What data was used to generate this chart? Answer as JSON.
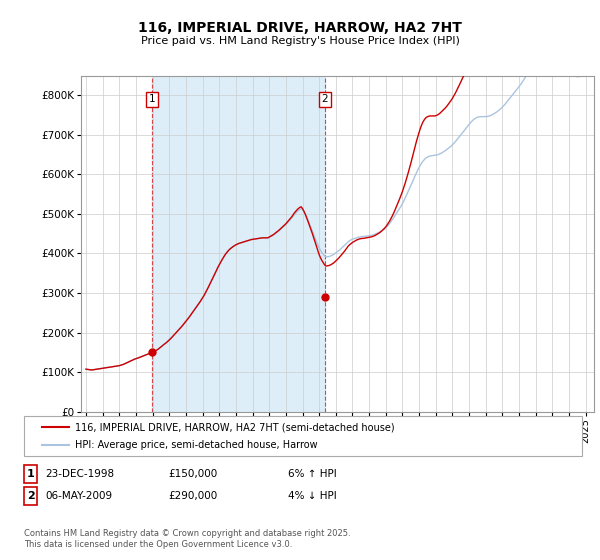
{
  "title": "116, IMPERIAL DRIVE, HARROW, HA2 7HT",
  "subtitle": "Price paid vs. HM Land Registry's House Price Index (HPI)",
  "legend_line1": "116, IMPERIAL DRIVE, HARROW, HA2 7HT (semi-detached house)",
  "legend_line2": "HPI: Average price, semi-detached house, Harrow",
  "footer": "Contains HM Land Registry data © Crown copyright and database right 2025.\nThis data is licensed under the Open Government Licence v3.0.",
  "annotation1_date": "23-DEC-1998",
  "annotation1_price": "£150,000",
  "annotation1_hpi": "6% ↑ HPI",
  "annotation2_date": "06-MAY-2009",
  "annotation2_price": "£290,000",
  "annotation2_hpi": "4% ↓ HPI",
  "ylim": [
    0,
    850000
  ],
  "yticks": [
    0,
    100000,
    200000,
    300000,
    400000,
    500000,
    600000,
    700000,
    800000
  ],
  "ytick_labels": [
    "£0",
    "£100K",
    "£200K",
    "£300K",
    "£400K",
    "£500K",
    "£600K",
    "£700K",
    "£800K"
  ],
  "line_color_red": "#cc0000",
  "line_color_blue": "#aac4e0",
  "fill_color_blue": "#ddeeff",
  "grid_color": "#cccccc",
  "background_color": "#ffffff",
  "sale1_year": 1998.97,
  "sale1_price": 150000,
  "sale2_year": 2009.35,
  "sale2_price": 290000,
  "xlim": [
    1994.7,
    2025.5
  ],
  "xtick_years": [
    1995,
    1996,
    1997,
    1998,
    1999,
    2000,
    2001,
    2002,
    2003,
    2004,
    2005,
    2006,
    2007,
    2008,
    2009,
    2010,
    2011,
    2012,
    2013,
    2014,
    2015,
    2016,
    2017,
    2018,
    2019,
    2020,
    2021,
    2022,
    2023,
    2024,
    2025
  ],
  "hpi_raw": [
    78.2,
    77.8,
    77.4,
    77.0,
    76.6,
    77.0,
    77.4,
    77.8,
    78.2,
    78.6,
    79.0,
    79.4,
    79.8,
    80.2,
    80.6,
    81.0,
    81.4,
    81.8,
    82.2,
    82.6,
    83.0,
    83.4,
    83.8,
    84.2,
    84.6,
    85.4,
    86.2,
    87.0,
    88.2,
    89.4,
    90.6,
    91.8,
    93.0,
    94.2,
    95.4,
    96.6,
    97.4,
    98.2,
    99.2,
    100.2,
    101.2,
    102.2,
    103.2,
    104.2,
    105.2,
    106.2,
    107.2,
    108.2,
    109.2,
    110.4,
    111.8,
    113.4,
    115.0,
    117.0,
    119.2,
    121.2,
    123.4,
    125.2,
    127.2,
    129.6,
    132.0,
    134.4,
    137.2,
    140.0,
    142.8,
    145.6,
    148.4,
    151.2,
    154.0,
    156.8,
    160.0,
    163.2,
    166.4,
    169.6,
    172.8,
    176.4,
    180.0,
    183.6,
    187.2,
    190.8,
    194.4,
    198.0,
    201.6,
    205.6,
    209.6,
    213.6,
    218.4,
    223.2,
    228.4,
    233.6,
    238.8,
    244.0,
    249.2,
    254.4,
    260.0,
    265.6,
    270.4,
    275.2,
    279.6,
    284.0,
    288.0,
    291.6,
    294.8,
    297.6,
    300.0,
    302.0,
    304.0,
    305.6,
    307.2,
    308.4,
    309.6,
    310.4,
    311.2,
    312.0,
    312.8,
    313.6,
    314.4,
    315.2,
    316.0,
    316.8,
    317.2,
    317.6,
    318.0,
    318.4,
    318.8,
    319.2,
    319.6,
    320.0,
    320.0,
    320.0,
    320.0,
    320.0,
    320.8,
    322.0,
    323.2,
    324.8,
    326.8,
    328.8,
    330.8,
    332.8,
    335.2,
    337.6,
    340.0,
    342.4,
    344.8,
    347.6,
    350.4,
    353.2,
    356.0,
    359.2,
    362.4,
    365.2,
    368.0,
    370.4,
    372.4,
    373.6,
    372.0,
    368.0,
    363.2,
    357.6,
    352.0,
    345.6,
    339.2,
    332.8,
    326.4,
    320.0,
    313.6,
    307.2,
    301.6,
    296.8,
    292.8,
    289.6,
    286.4,
    284.8,
    285.2,
    285.6,
    286.4,
    287.6,
    288.8,
    290.4,
    292.4,
    294.4,
    296.4,
    298.4,
    300.8,
    303.2,
    305.6,
    308.0,
    310.4,
    312.8,
    314.8,
    316.4,
    317.6,
    318.4,
    319.2,
    320.0,
    320.8,
    321.6,
    322.0,
    322.4,
    322.4,
    322.8,
    323.2,
    323.6,
    324.0,
    324.4,
    324.8,
    325.6,
    326.4,
    327.6,
    328.8,
    330.0,
    331.2,
    332.8,
    334.4,
    336.0,
    338.4,
    340.8,
    344.0,
    347.2,
    350.8,
    354.4,
    358.4,
    362.4,
    366.4,
    370.4,
    374.4,
    378.4,
    383.2,
    388.0,
    393.6,
    399.2,
    404.8,
    410.4,
    416.0,
    422.0,
    428.0,
    433.6,
    439.2,
    444.8,
    449.6,
    454.4,
    458.4,
    462.0,
    464.8,
    467.2,
    468.8,
    470.0,
    470.8,
    471.2,
    471.6,
    472.0,
    472.4,
    472.8,
    473.6,
    474.8,
    476.0,
    477.6,
    479.2,
    480.8,
    482.8,
    484.8,
    486.8,
    488.8,
    491.2,
    494.0,
    496.8,
    500.0,
    503.2,
    506.4,
    509.6,
    512.8,
    516.0,
    519.2,
    522.4,
    525.6,
    528.8,
    532.0,
    534.8,
    537.2,
    539.2,
    540.8,
    542.0,
    542.8,
    543.2,
    543.2,
    543.2,
    543.2,
    543.2,
    543.6,
    544.0,
    544.8,
    546.0,
    547.2,
    548.8,
    550.4,
    552.0,
    554.0,
    556.0,
    558.4,
    560.8,
    563.6,
    566.4,
    569.6,
    572.8,
    576.0,
    579.2,
    582.4,
    585.6,
    588.8,
    592.0,
    595.2,
    598.4,
    602.0,
    605.6,
    609.6,
    613.6,
    617.6,
    621.6,
    625.6,
    629.6,
    633.2,
    636.4,
    639.2,
    641.6,
    643.2,
    644.8,
    646.0,
    646.8,
    647.2,
    647.2,
    647.2,
    646.8,
    646.4,
    645.6,
    644.8,
    643.6,
    642.4,
    640.8,
    639.2,
    637.6,
    636.0,
    634.0,
    632.0,
    630.0,
    628.0,
    626.0,
    624.0,
    622.4,
    620.8,
    619.6,
    618.4,
    617.6,
    617.2,
    616.8,
    616.8,
    617.2,
    617.6,
    618.4,
    619.6,
    620.8
  ],
  "red_raw": [
    78.2,
    77.8,
    77.4,
    77.0,
    76.6,
    77.0,
    77.4,
    77.8,
    78.2,
    78.6,
    79.0,
    79.4,
    79.8,
    80.2,
    80.6,
    81.0,
    81.4,
    81.8,
    82.2,
    82.6,
    83.0,
    83.4,
    83.8,
    84.2,
    84.6,
    85.4,
    86.2,
    87.0,
    88.2,
    89.4,
    90.6,
    91.8,
    93.0,
    94.2,
    95.4,
    96.6,
    97.4,
    98.2,
    99.2,
    100.2,
    101.2,
    102.2,
    103.2,
    104.2,
    105.2,
    106.2,
    107.2,
    108.2,
    109.2,
    110.4,
    111.8,
    113.4,
    115.0,
    117.0,
    119.2,
    121.2,
    123.4,
    125.2,
    127.2,
    129.6,
    132.0,
    134.4,
    137.2,
    140.0,
    142.8,
    145.6,
    148.4,
    151.2,
    154.0,
    156.8,
    160.0,
    163.2,
    166.4,
    169.6,
    172.8,
    176.4,
    180.0,
    183.6,
    187.2,
    190.8,
    194.4,
    198.0,
    201.6,
    205.6,
    209.6,
    213.6,
    218.4,
    223.2,
    228.4,
    233.6,
    238.8,
    244.0,
    249.2,
    254.4,
    260.0,
    265.6,
    270.4,
    275.2,
    279.6,
    284.0,
    288.0,
    291.6,
    294.8,
    297.6,
    300.0,
    302.0,
    304.0,
    305.6,
    307.2,
    308.4,
    309.6,
    310.4,
    311.2,
    312.0,
    312.8,
    313.6,
    314.4,
    315.2,
    316.0,
    316.8,
    317.2,
    317.6,
    318.0,
    318.4,
    318.8,
    319.2,
    319.6,
    320.0,
    320.0,
    320.0,
    320.0,
    320.0,
    321.6,
    323.0,
    324.4,
    326.0,
    328.0,
    330.0,
    332.0,
    334.0,
    336.4,
    338.8,
    341.2,
    343.6,
    346.0,
    349.0,
    352.0,
    355.0,
    358.0,
    361.5,
    365.5,
    368.5,
    371.5,
    374.0,
    376.0,
    377.2,
    374.0,
    369.0,
    363.5,
    357.0,
    350.0,
    343.0,
    336.0,
    328.5,
    320.5,
    312.5,
    304.5,
    296.5,
    289.0,
    283.0,
    278.0,
    274.0,
    270.0,
    268.0,
    268.5,
    269.0,
    270.0,
    271.5,
    273.0,
    275.0,
    277.5,
    280.0,
    282.5,
    285.5,
    288.5,
    291.5,
    294.5,
    298.0,
    301.5,
    305.0,
    307.5,
    309.5,
    311.5,
    313.0,
    314.5,
    316.0,
    317.0,
    318.0,
    318.5,
    319.0,
    319.0,
    319.5,
    320.0,
    320.5,
    321.0,
    321.5,
    322.0,
    323.0,
    324.0,
    325.5,
    327.0,
    328.5,
    330.5,
    332.5,
    335.0,
    337.5,
    340.5,
    344.0,
    348.0,
    352.0,
    357.0,
    362.0,
    367.5,
    373.5,
    379.5,
    385.5,
    392.0,
    398.5,
    405.5,
    413.0,
    421.0,
    429.5,
    438.5,
    447.5,
    457.0,
    467.0,
    477.5,
    487.5,
    497.0,
    506.0,
    514.5,
    522.5,
    529.0,
    534.5,
    538.5,
    541.5,
    543.0,
    544.0,
    544.5,
    544.5,
    544.5,
    544.5,
    545.0,
    546.0,
    547.5,
    549.5,
    552.0,
    554.5,
    557.0,
    559.5,
    562.5,
    566.0,
    569.5,
    573.0,
    577.0,
    581.5,
    586.0,
    591.0,
    596.5,
    601.5,
    607.0,
    612.5,
    618.0,
    623.5,
    629.0,
    634.5,
    639.5,
    644.0,
    648.5,
    652.5,
    656.0,
    658.5,
    660.5,
    661.5,
    662.0,
    661.5,
    661.0,
    660.5,
    659.5,
    659.0,
    659.5,
    660.5,
    662.5,
    664.5,
    667.0,
    669.5,
    672.5,
    675.5,
    679.0,
    683.0,
    687.0,
    691.5,
    696.0,
    701.0,
    706.0,
    711.5,
    717.5,
    723.5,
    730.0,
    736.5,
    743.0,
    749.5,
    756.5,
    764.0,
    772.5,
    781.5,
    790.5,
    799.5,
    808.5,
    817.5,
    827.0,
    835.5,
    843.5,
    850.5,
    856.5,
    860.5,
    864.5,
    867.0,
    868.5,
    869.0,
    868.5,
    868.0,
    867.5,
    866.5,
    865.0,
    863.5,
    861.5,
    859.5,
    857.0,
    854.5,
    852.0,
    849.5,
    846.5,
    843.5,
    840.5,
    837.5,
    834.5,
    831.5,
    829.0,
    826.5,
    824.5,
    822.5,
    821.0,
    820.0,
    819.5,
    819.5,
    820.0,
    821.0,
    822.5,
    824.5,
    826.5
  ]
}
